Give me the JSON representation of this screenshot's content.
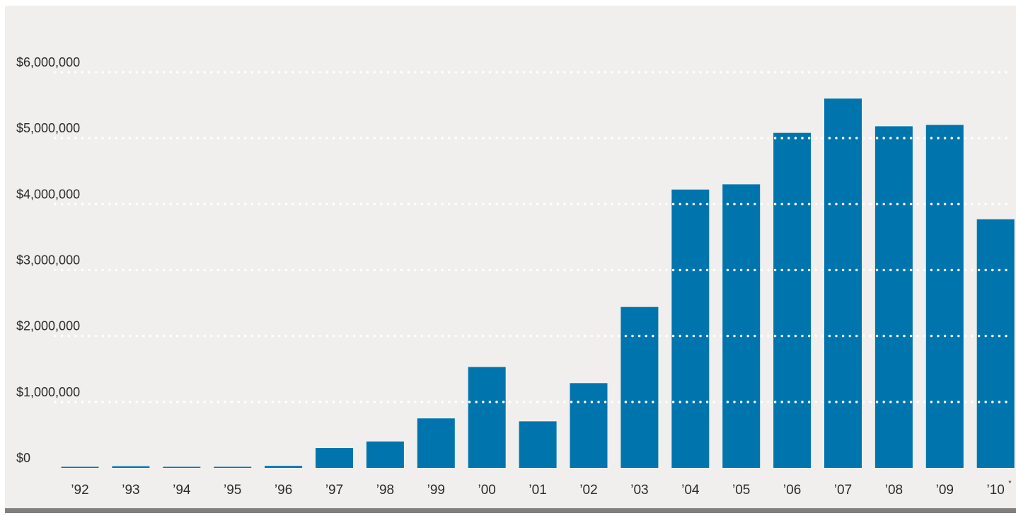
{
  "chart_data": {
    "type": "bar",
    "categories": [
      "’92",
      "’93",
      "’94",
      "’95",
      "’96",
      "’97",
      "’98",
      "’99",
      "’00",
      "’01",
      "’02",
      "’03",
      "’04",
      "’05",
      "’06",
      "’07",
      "’08",
      "’09",
      "’10"
    ],
    "footnote_marker": {
      "category": "’10",
      "mark": "*"
    },
    "values": [
      10000,
      25000,
      15000,
      15000,
      30000,
      300000,
      400000,
      750000,
      1530000,
      705000,
      1285000,
      2440000,
      4220000,
      4300000,
      5080000,
      5600000,
      5180000,
      5200000,
      3770000
    ],
    "title": "",
    "xlabel": "",
    "ylabel": "",
    "ylim": [
      0,
      6000000
    ],
    "yticks": [
      0,
      1000000,
      2000000,
      3000000,
      4000000,
      5000000,
      6000000
    ],
    "ytick_labels": [
      "$0",
      "$1,000,000",
      "$2,000,000",
      "$3,000,000",
      "$4,000,000",
      "$5,000,000",
      "$6,000,000"
    ],
    "grid": "horizontal dotted",
    "legend": "none"
  },
  "colors": {
    "plot_background": "#f0efed",
    "bar": "#0075ad",
    "gridline": "#ffffff",
    "baseline": "#808080",
    "text": "#2b2b2b"
  }
}
